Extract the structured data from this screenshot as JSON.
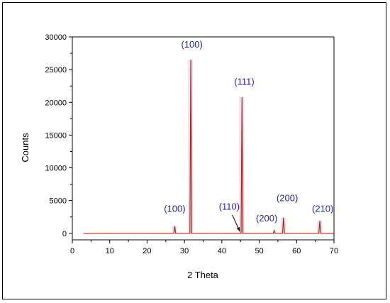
{
  "chart_data": {
    "type": "line",
    "title": "",
    "xlabel": "2 Theta",
    "ylabel": "Counts",
    "xlim": [
      0,
      70
    ],
    "ylim": [
      -1000,
      30000
    ],
    "x_ticks": [
      0,
      10,
      20,
      30,
      40,
      50,
      60,
      70
    ],
    "y_ticks": [
      0,
      5000,
      10000,
      15000,
      20000,
      25000,
      30000
    ],
    "grid": false,
    "line_color": "#a52a1a",
    "label_color": "#1e1eaa",
    "baseline": 0,
    "peaks": [
      {
        "x": 27.4,
        "y": 1100
      },
      {
        "x": 31.7,
        "y": 26500
      },
      {
        "x": 45.4,
        "y": 20800
      },
      {
        "x": 54.0,
        "y": 450
      },
      {
        "x": 56.5,
        "y": 2400
      },
      {
        "x": 66.2,
        "y": 1900
      }
    ],
    "annotations": [
      {
        "text": "(100)",
        "x": 27.4,
        "y": 3300
      },
      {
        "text": "(100)",
        "x": 32.0,
        "y": 28400
      },
      {
        "text": "(111)",
        "x": 46.0,
        "y": 22700
      },
      {
        "text": "(110)",
        "x": 42.0,
        "y": 3600
      },
      {
        "text": "(200)",
        "x": 52.0,
        "y": 1800
      },
      {
        "text": "(200)",
        "x": 57.5,
        "y": 4900
      },
      {
        "text": "(210)",
        "x": 67.0,
        "y": 3300
      }
    ],
    "arrow": {
      "from": [
        42.8,
        2800
      ],
      "to": [
        44.8,
        300
      ]
    }
  }
}
